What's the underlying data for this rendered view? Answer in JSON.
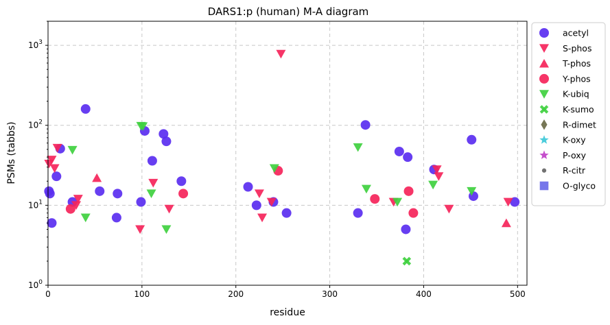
{
  "chart_data": {
    "type": "scatter",
    "title": "DARS1:p (human) M-A diagram",
    "xlabel": "residue",
    "ylabel": "PSMs (tabbs)",
    "xlim": [
      0,
      510
    ],
    "ylim": [
      1,
      2000
    ],
    "yscale": "log",
    "grid": true,
    "legend_position": "outside-right",
    "x_ticks": [
      {
        "value": 0,
        "label": "0"
      },
      {
        "value": 100,
        "label": "100"
      },
      {
        "value": 200,
        "label": "200"
      },
      {
        "value": 300,
        "label": "300"
      },
      {
        "value": 400,
        "label": "400"
      },
      {
        "value": 500,
        "label": "500"
      }
    ],
    "y_ticks": [
      {
        "value": 1,
        "base": "10",
        "exp": "0"
      },
      {
        "value": 10,
        "base": "10",
        "exp": "1"
      },
      {
        "value": 100,
        "base": "10",
        "exp": "2"
      },
      {
        "value": 1000,
        "base": "10",
        "exp": "3"
      }
    ],
    "series": [
      {
        "name": "acetyl",
        "marker": "circle",
        "color": "#5a2ef0",
        "points": [
          [
            1,
            15
          ],
          [
            2,
            14
          ],
          [
            4,
            6
          ],
          [
            9,
            23
          ],
          [
            13,
            51
          ],
          [
            26,
            11
          ],
          [
            40,
            160
          ],
          [
            55,
            15
          ],
          [
            73,
            7
          ],
          [
            74,
            14
          ],
          [
            99,
            11
          ],
          [
            103,
            85
          ],
          [
            111,
            36
          ],
          [
            123,
            78
          ],
          [
            126,
            63
          ],
          [
            142,
            20
          ],
          [
            213,
            17
          ],
          [
            222,
            10
          ],
          [
            240,
            11
          ],
          [
            254,
            8
          ],
          [
            330,
            8
          ],
          [
            338,
            101
          ],
          [
            374,
            47
          ],
          [
            381,
            5
          ],
          [
            383,
            40
          ],
          [
            411,
            28
          ],
          [
            451,
            66
          ],
          [
            453,
            13
          ],
          [
            497,
            11
          ]
        ]
      },
      {
        "name": "S-phos",
        "marker": "triangle-down",
        "color": "#f5245a",
        "points": [
          [
            1,
            33
          ],
          [
            4,
            37
          ],
          [
            7,
            29
          ],
          [
            10,
            52
          ],
          [
            30,
            10
          ],
          [
            32,
            12
          ],
          [
            98,
            5
          ],
          [
            112,
            19
          ],
          [
            129,
            9
          ],
          [
            225,
            14
          ],
          [
            228,
            7
          ],
          [
            238,
            11
          ],
          [
            248,
            780
          ],
          [
            368,
            11
          ],
          [
            414,
            28
          ],
          [
            416,
            23
          ],
          [
            427,
            9
          ],
          [
            490,
            11
          ]
        ]
      },
      {
        "name": "T-phos",
        "marker": "triangle-up",
        "color": "#f5245a",
        "points": [
          [
            52,
            22
          ],
          [
            488,
            6
          ]
        ]
      },
      {
        "name": "Y-phos",
        "marker": "circle",
        "color": "#f5245a",
        "points": [
          [
            24,
            9
          ],
          [
            144,
            14
          ],
          [
            245,
            27
          ],
          [
            348,
            12
          ],
          [
            384,
            15
          ],
          [
            389,
            8
          ]
        ]
      },
      {
        "name": "K-ubiq",
        "marker": "triangle-down",
        "color": "#3fd03f",
        "points": [
          [
            26,
            49
          ],
          [
            40,
            7
          ],
          [
            99,
            98
          ],
          [
            101,
            97
          ],
          [
            110,
            14
          ],
          [
            126,
            5
          ],
          [
            241,
            29
          ],
          [
            330,
            53
          ],
          [
            339,
            16
          ],
          [
            372,
            11
          ],
          [
            410,
            18
          ],
          [
            451,
            15
          ]
        ]
      },
      {
        "name": "K-sumo",
        "marker": "x",
        "color": "#3fd03f",
        "points": [
          [
            382,
            2
          ]
        ]
      },
      {
        "name": "R-dimet",
        "marker": "diamond",
        "color": "#6b6b48",
        "points": []
      },
      {
        "name": "K-oxy",
        "marker": "star",
        "color": "#3cc8d8",
        "points": []
      },
      {
        "name": "P-oxy",
        "marker": "star",
        "color": "#c040c8",
        "points": []
      },
      {
        "name": "R-citr",
        "marker": "dot",
        "color": "#666666",
        "points": []
      },
      {
        "name": "O-glyco",
        "marker": "square",
        "color": "#6a6ae8",
        "points": []
      }
    ]
  }
}
